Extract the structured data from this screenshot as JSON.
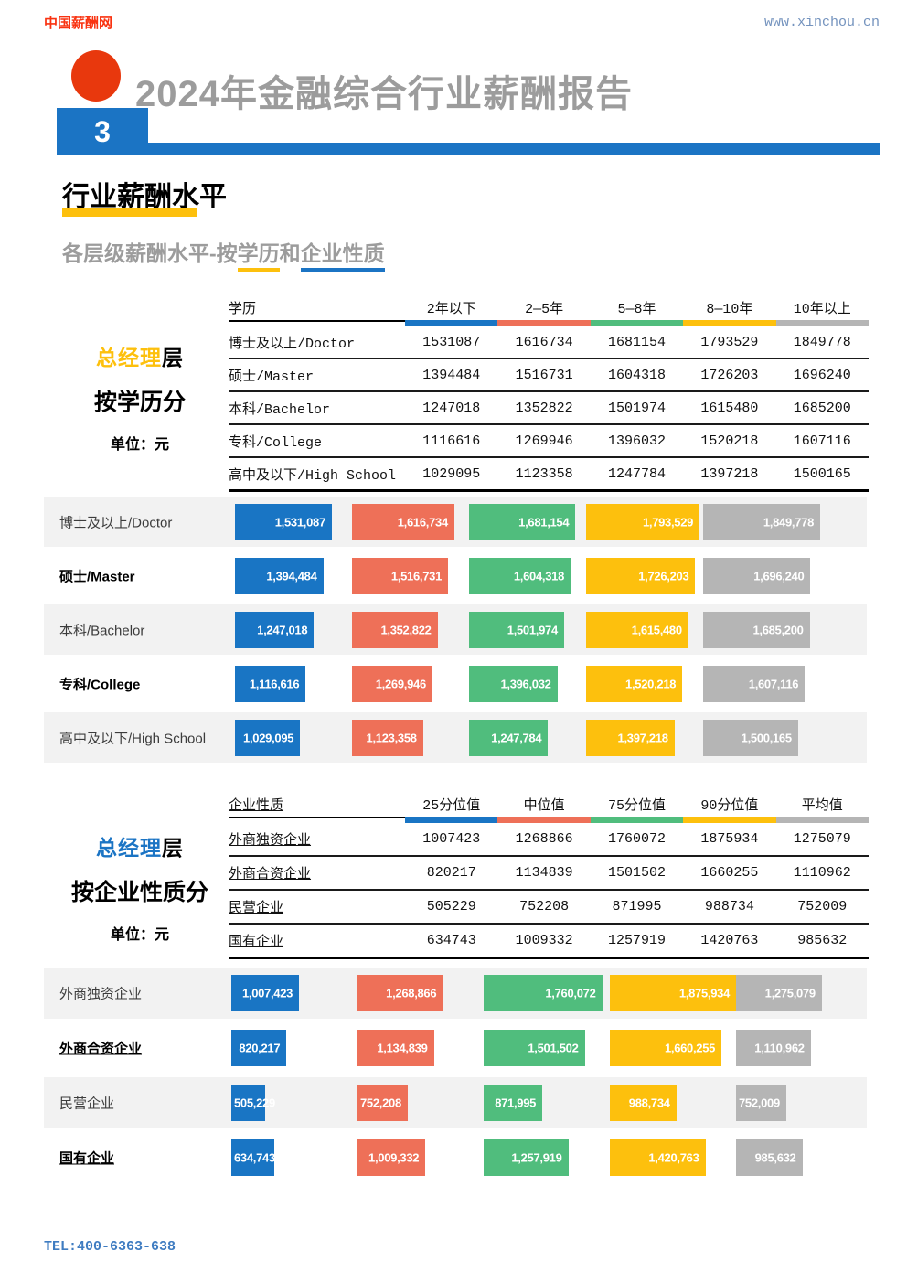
{
  "header": {
    "brand": "中国薪酬网",
    "website": "www.xinchou.cn",
    "report_title": "2024年金融综合行业薪酬报告",
    "page_number": "3"
  },
  "section": {
    "title": "行业薪酬水平",
    "subtitle_prefix": "各层级薪酬水平-按",
    "subtitle_edu": "学历",
    "subtitle_and": "和",
    "subtitle_ent": "企业性质"
  },
  "footer": {
    "tel": "TEL:400-6363-638"
  },
  "colors": {
    "accent_blue": "#1B74C4",
    "accent_yellow": "#FDC00D",
    "brand_red": "#F93311",
    "circle_red": "#E8380D",
    "title_gray": "#9C9C9C",
    "website_blue": "#7493BE",
    "tel_blue": "#3F7CC1",
    "row_band": "#F2F2F2",
    "series": [
      "#1975C4",
      "#EE7058",
      "#50BD7D",
      "#FDC00D",
      "#B5B5B5"
    ]
  },
  "chart_data": [
    {
      "type": "bar",
      "orientation": "horizontal",
      "title": "总经理层 按学历分",
      "unit": "单位：元",
      "side_label": {
        "highlight": "总经理",
        "suffix": "层",
        "group": "按学历分",
        "unit": "单位：元",
        "highlight_color": "#FDC00D"
      },
      "first_col_header": "学历",
      "categories": [
        "博士及以上/Doctor",
        "硕士/Master",
        "本科/Bachelor",
        "专科/College",
        "高中及以下/High School"
      ],
      "series": [
        {
          "name": "2年以下",
          "values": [
            1531087,
            1394484,
            1247018,
            1116616,
            1029095
          ]
        },
        {
          "name": "2—5年",
          "values": [
            1616734,
            1516731,
            1352822,
            1269946,
            1123358
          ]
        },
        {
          "name": "5—8年",
          "values": [
            1681154,
            1604318,
            1501974,
            1396032,
            1247784
          ]
        },
        {
          "name": "8—10年",
          "values": [
            1793529,
            1726203,
            1615480,
            1520218,
            1397218
          ]
        },
        {
          "name": "10年以上",
          "values": [
            1849778,
            1696240,
            1685200,
            1607116,
            1500165
          ]
        }
      ],
      "legend_position": "table-header-stripes",
      "grid": false
    },
    {
      "type": "bar",
      "orientation": "horizontal",
      "title": "总经理层 按企业性质分",
      "unit": "单位：元",
      "side_label": {
        "highlight": "总经理",
        "suffix": "层",
        "group": "按企业性质分",
        "unit": "单位：元",
        "highlight_color": "#1B74C4"
      },
      "first_col_header": "企业性质",
      "categories": [
        "外商独资企业",
        "外商合资企业",
        "民营企业",
        "国有企业"
      ],
      "series": [
        {
          "name": "25分位值",
          "values": [
            1007423,
            820217,
            505229,
            634743
          ]
        },
        {
          "name": "中位值",
          "values": [
            1268866,
            1134839,
            752208,
            1009332
          ]
        },
        {
          "name": "75分位值",
          "values": [
            1760072,
            1501502,
            871995,
            1257919
          ]
        },
        {
          "name": "90分位值",
          "values": [
            1875934,
            1660255,
            988734,
            1420763
          ]
        },
        {
          "name": "平均值",
          "values": [
            1275079,
            1110962,
            752009,
            985632
          ]
        }
      ],
      "legend_position": "table-header-stripes",
      "grid": false
    }
  ]
}
